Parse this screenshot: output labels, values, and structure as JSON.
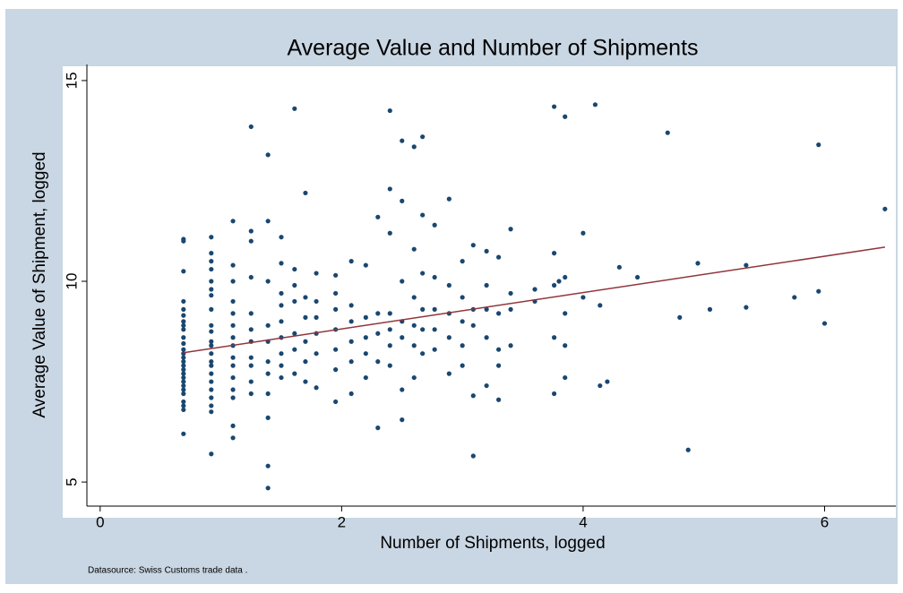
{
  "chart_data": {
    "type": "scatter",
    "title": "Average Value and Number of Shipments",
    "xlabel": "Number of Shipments, logged",
    "ylabel": "Average Value of Shipment, logged",
    "note": "Datasource: Swiss Customs trade data .",
    "color": "#1a476f",
    "fit": {
      "x": [
        0.69,
        6.5
      ],
      "y": [
        8.22,
        10.85
      ],
      "color": "#90353b"
    },
    "xlim": [
      -0.11,
      6.59
    ],
    "ylim": [
      4.4,
      15.4
    ],
    "xticks": [
      0,
      2,
      4,
      6
    ],
    "yticks": [
      5,
      10,
      15
    ],
    "x": [
      0.69,
      0.69,
      0.69,
      0.69,
      0.69,
      0.69,
      0.69,
      0.69,
      0.69,
      0.69,
      0.69,
      0.69,
      0.69,
      0.69,
      0.69,
      0.69,
      0.69,
      0.69,
      0.69,
      0.69,
      0.69,
      0.69,
      0.69,
      0.69,
      0.69,
      0.69,
      0.69,
      0.92,
      0.92,
      0.92,
      0.92,
      0.92,
      0.92,
      0.92,
      0.92,
      0.92,
      0.92,
      0.92,
      0.92,
      0.92,
      0.92,
      0.92,
      0.92,
      0.92,
      0.92,
      0.92,
      0.92,
      0.92,
      0.92,
      1.1,
      1.1,
      1.1,
      1.1,
      1.1,
      1.1,
      1.1,
      1.1,
      1.1,
      1.1,
      1.1,
      1.1,
      1.1,
      1.1,
      1.1,
      1.25,
      1.25,
      1.25,
      1.25,
      1.25,
      1.25,
      1.25,
      1.25,
      1.25,
      1.25,
      1.25,
      1.39,
      1.39,
      1.39,
      1.39,
      1.39,
      1.39,
      1.39,
      1.39,
      1.39,
      1.39,
      1.39,
      1.5,
      1.5,
      1.5,
      1.5,
      1.5,
      1.5,
      1.5,
      1.5,
      1.5,
      1.61,
      1.61,
      1.61,
      1.61,
      1.61,
      1.61,
      1.61,
      1.7,
      1.7,
      1.7,
      1.7,
      1.7,
      1.7,
      1.79,
      1.79,
      1.79,
      1.79,
      1.79,
      1.79,
      1.95,
      1.95,
      1.95,
      1.95,
      1.95,
      1.95,
      1.95,
      2.08,
      2.08,
      2.08,
      2.08,
      2.08,
      2.08,
      2.2,
      2.2,
      2.2,
      2.2,
      2.2,
      2.3,
      2.3,
      2.3,
      2.3,
      2.3,
      2.4,
      2.4,
      2.4,
      2.4,
      2.4,
      2.4,
      2.4,
      2.5,
      2.5,
      2.5,
      2.5,
      2.5,
      2.5,
      2.5,
      2.6,
      2.6,
      2.6,
      2.6,
      2.6,
      2.6,
      2.67,
      2.67,
      2.67,
      2.67,
      2.67,
      2.67,
      2.77,
      2.77,
      2.77,
      2.77,
      2.77,
      2.89,
      2.89,
      2.89,
      2.89,
      2.89,
      3.0,
      3.0,
      3.0,
      3.0,
      3.0,
      3.09,
      3.09,
      3.09,
      3.09,
      3.09,
      3.2,
      3.2,
      3.2,
      3.2,
      3.2,
      3.3,
      3.3,
      3.3,
      3.3,
      3.3,
      3.4,
      3.4,
      3.4,
      3.4,
      3.6,
      3.6,
      3.76,
      3.76,
      3.76,
      3.76,
      3.76,
      3.85,
      3.85,
      3.85,
      3.85,
      3.85,
      4.0,
      4.0,
      4.14,
      4.14,
      4.2,
      4.3,
      4.7,
      4.8,
      4.87,
      4.95,
      5.05,
      5.35,
      5.35,
      5.75,
      5.95,
      5.95,
      6.0,
      6.5,
      4.1,
      3.8,
      4.45
    ],
    "values": [
      11.05,
      11.0,
      10.25,
      9.5,
      9.3,
      9.15,
      9.0,
      8.9,
      8.8,
      8.6,
      8.45,
      8.3,
      8.2,
      8.1,
      8.0,
      7.9,
      7.8,
      7.7,
      7.6,
      7.5,
      7.4,
      7.3,
      7.2,
      7.0,
      6.9,
      6.8,
      6.2,
      11.1,
      10.7,
      10.5,
      10.3,
      10.0,
      9.8,
      9.65,
      9.3,
      8.9,
      8.75,
      8.5,
      8.4,
      8.2,
      8.0,
      7.9,
      7.7,
      7.5,
      7.3,
      7.1,
      6.9,
      6.75,
      5.7,
      11.5,
      10.4,
      10.0,
      9.5,
      9.2,
      8.9,
      8.6,
      8.4,
      8.1,
      7.9,
      7.6,
      7.3,
      7.1,
      6.4,
      6.1,
      13.85,
      11.25,
      11.0,
      10.1,
      9.2,
      8.8,
      8.5,
      8.1,
      7.9,
      7.5,
      7.2,
      13.15,
      11.5,
      10.0,
      8.9,
      8.5,
      8.0,
      7.7,
      7.2,
      6.6,
      5.4,
      4.85,
      11.1,
      10.45,
      9.7,
      9.4,
      9.0,
      8.6,
      8.2,
      7.9,
      7.6,
      14.3,
      10.3,
      9.9,
      9.5,
      8.7,
      8.3,
      7.7,
      12.2,
      9.6,
      9.1,
      8.5,
      8.0,
      7.5,
      10.2,
      9.5,
      9.1,
      8.7,
      8.2,
      7.35,
      10.15,
      9.7,
      9.3,
      8.8,
      8.3,
      7.8,
      7.0,
      10.5,
      9.4,
      9.0,
      8.5,
      8.0,
      7.2,
      10.4,
      9.1,
      8.6,
      8.2,
      7.6,
      11.6,
      9.2,
      8.7,
      8.0,
      6.35,
      14.25,
      12.3,
      11.2,
      9.2,
      8.8,
      8.4,
      7.9,
      13.5,
      12.0,
      10.0,
      9.0,
      8.6,
      7.3,
      6.55,
      13.35,
      10.8,
      9.6,
      8.9,
      8.4,
      7.6,
      13.6,
      11.65,
      10.2,
      9.3,
      8.8,
      8.2,
      11.4,
      10.1,
      9.3,
      8.8,
      8.3,
      12.05,
      9.9,
      9.2,
      8.6,
      7.7,
      10.5,
      9.6,
      9.0,
      8.4,
      7.9,
      10.9,
      9.3,
      8.9,
      7.15,
      5.65,
      10.75,
      9.9,
      9.3,
      8.6,
      7.4,
      10.6,
      9.2,
      8.3,
      7.9,
      7.05,
      11.3,
      9.7,
      9.3,
      8.4,
      9.8,
      9.5,
      14.35,
      10.7,
      9.9,
      8.6,
      7.2,
      14.1,
      10.1,
      9.2,
      8.4,
      7.6,
      11.2,
      9.6,
      9.4,
      7.4,
      7.5,
      10.35,
      13.7,
      9.1,
      5.8,
      10.45,
      9.3,
      10.4,
      9.35,
      9.6,
      13.4,
      9.75,
      8.95,
      11.8,
      14.4,
      10.0,
      10.1
    ]
  }
}
